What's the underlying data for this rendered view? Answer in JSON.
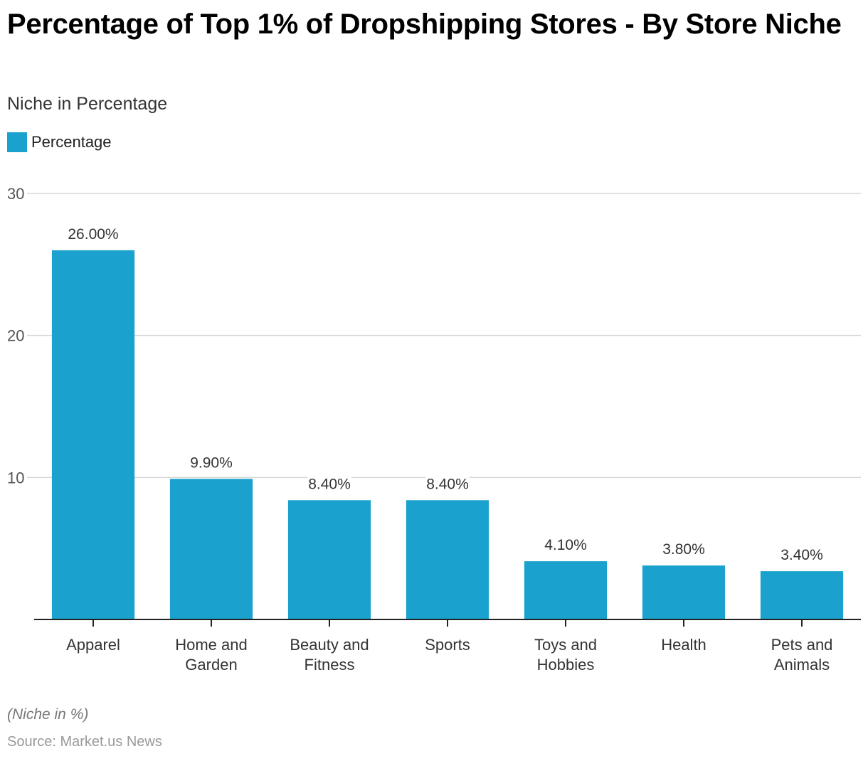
{
  "header": {
    "title": "Percentage of Top 1% of Dropshipping Stores - By Store Niche",
    "subtitle": "Niche in Percentage"
  },
  "legend": {
    "label": "Percentage",
    "color": "#1aa1cd"
  },
  "footer": {
    "note": "(Niche in %)",
    "source": "Source: Market.us News"
  },
  "chart_data": {
    "type": "bar",
    "title": "Percentage of Top 1% of Dropshipping Stores - By Store Niche",
    "subtitle": "Niche in Percentage",
    "xlabel": "",
    "ylabel": "",
    "ylim": [
      0,
      30
    ],
    "yticks": [
      10,
      20,
      30
    ],
    "grid": true,
    "legend_position": "top-left",
    "categories": [
      [
        "Apparel"
      ],
      [
        "Home and",
        "Garden"
      ],
      [
        "Beauty and",
        "Fitness"
      ],
      [
        "Sports"
      ],
      [
        "Toys and",
        "Hobbies"
      ],
      [
        "Health"
      ],
      [
        "Pets and",
        "Animals"
      ]
    ],
    "series": [
      {
        "name": "Percentage",
        "color": "#1aa1cd",
        "values": [
          26.0,
          9.9,
          8.4,
          8.4,
          4.1,
          3.8,
          3.4
        ],
        "labels": [
          "26.00%",
          "9.90%",
          "8.40%",
          "8.40%",
          "4.10%",
          "3.80%",
          "3.40%"
        ]
      }
    ]
  }
}
